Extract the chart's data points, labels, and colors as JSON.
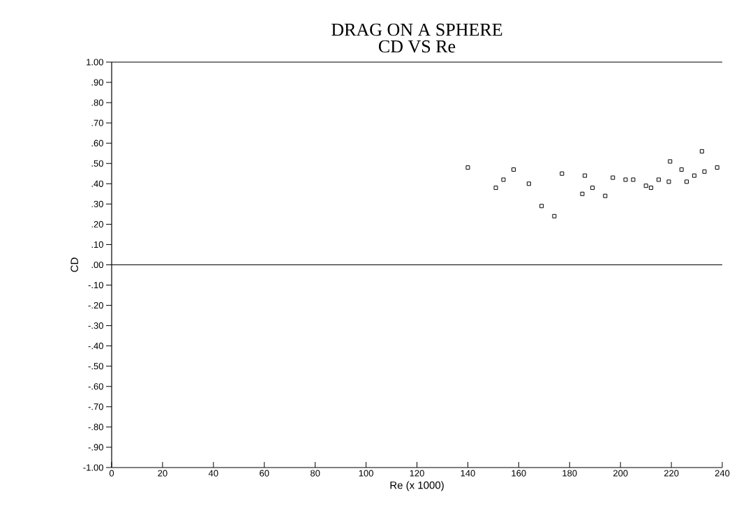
{
  "chart_data": {
    "type": "scatter",
    "title": "DRAG ON A SPHERE",
    "subtitle": "CD VS Re",
    "xlabel": "Re (x 1000)",
    "ylabel": "CD",
    "marker": "square",
    "grid": false,
    "xlim": [
      0,
      240
    ],
    "xticks": [
      0,
      20,
      40,
      60,
      80,
      100,
      120,
      140,
      160,
      180,
      200,
      220,
      240
    ],
    "ylim": [
      -1.0,
      1.0
    ],
    "yticks": [
      {
        "value": 1.0,
        "label": "1.00"
      },
      {
        "value": 0.9,
        "label": ".90"
      },
      {
        "value": 0.8,
        "label": ".80"
      },
      {
        "value": 0.7,
        "label": ".70"
      },
      {
        "value": 0.6,
        "label": ".60"
      },
      {
        "value": 0.5,
        "label": ".50"
      },
      {
        "value": 0.4,
        "label": ".40"
      },
      {
        "value": 0.3,
        "label": ".30"
      },
      {
        "value": 0.2,
        "label": ".20"
      },
      {
        "value": 0.1,
        "label": ".10"
      },
      {
        "value": 0.0,
        "label": ".00"
      },
      {
        "value": -0.1,
        "label": "-.10"
      },
      {
        "value": -0.2,
        "label": "-.20"
      },
      {
        "value": -0.3,
        "label": "-.30"
      },
      {
        "value": -0.4,
        "label": "-.40"
      },
      {
        "value": -0.5,
        "label": "-.50"
      },
      {
        "value": -0.6,
        "label": "-.60"
      },
      {
        "value": -0.7,
        "label": "-.70"
      },
      {
        "value": -0.8,
        "label": "-.80"
      },
      {
        "value": -0.9,
        "label": "-.90"
      },
      {
        "value": -1.0,
        "label": "-1.00"
      }
    ],
    "ref_lines": [
      {
        "axis": "y",
        "value": 0.0
      }
    ],
    "x": [
      140,
      151,
      154,
      158,
      164,
      169,
      174,
      177,
      186,
      185,
      189,
      194,
      197,
      202,
      205,
      210,
      212,
      215,
      219,
      219.5,
      224,
      226,
      229,
      232,
      233,
      238
    ],
    "values": [
      0.48,
      0.38,
      0.42,
      0.47,
      0.4,
      0.29,
      0.24,
      0.45,
      0.44,
      0.35,
      0.38,
      0.34,
      0.43,
      0.42,
      0.42,
      0.39,
      0.38,
      0.42,
      0.41,
      0.51,
      0.47,
      0.41,
      0.44,
      0.56,
      0.46,
      0.48
    ],
    "color": "#000000"
  }
}
